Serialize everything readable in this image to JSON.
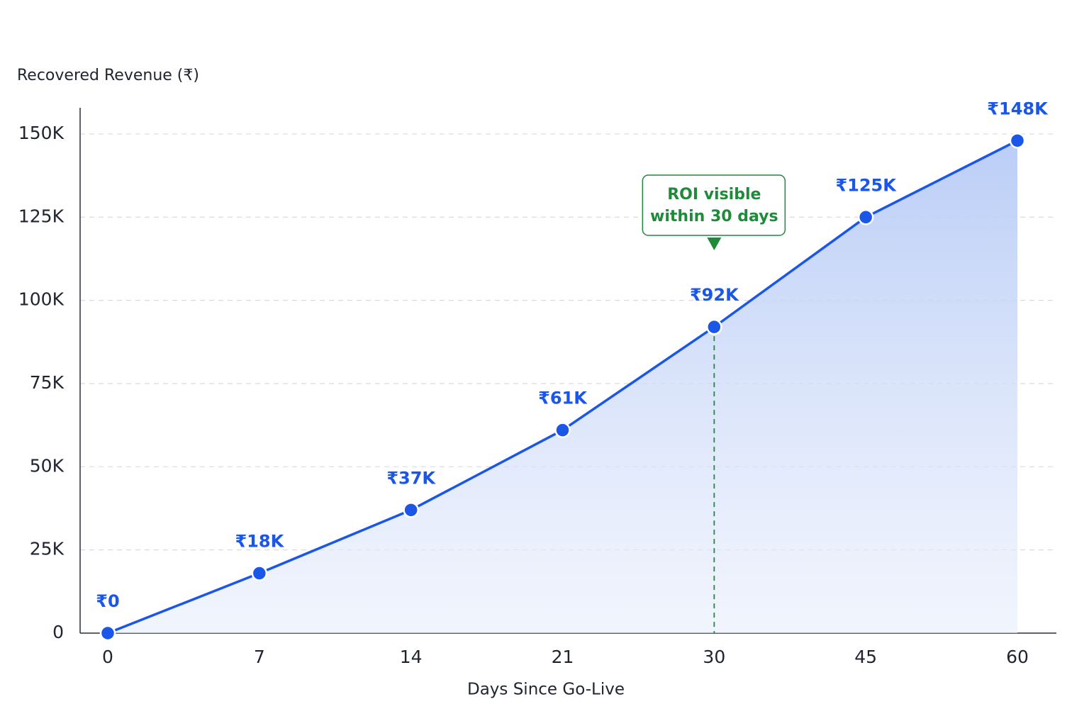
{
  "chart_data": {
    "type": "line",
    "y_axis_label": "Recovered Revenue (₹)",
    "x_axis_label": "Days Since Go-Live",
    "categories": [
      "0",
      "7",
      "14",
      "21",
      "30",
      "45",
      "60"
    ],
    "values": [
      0,
      18000,
      37000,
      61000,
      92000,
      125000,
      148000
    ],
    "value_labels": [
      "₹0",
      "₹18K",
      "₹37K",
      "₹61K",
      "₹92K",
      "₹125K",
      "₹148K"
    ],
    "color": "#1a56e8",
    "ylim": [
      0,
      160000
    ],
    "yticks": [
      0,
      {
        "value": 25000,
        "label": "25K"
      },
      {
        "value": 50000,
        "label": "50K"
      },
      {
        "value": 75000,
        "label": "75K"
      },
      {
        "value": 100000,
        "label": "100K"
      },
      {
        "value": 125000,
        "label": "125K"
      },
      {
        "value": 150000,
        "label": "150K"
      }
    ],
    "grid": true,
    "annotation": {
      "lines": [
        "ROI visible",
        "within 30 days"
      ],
      "category": "30",
      "color": "#1e8a3a"
    }
  }
}
